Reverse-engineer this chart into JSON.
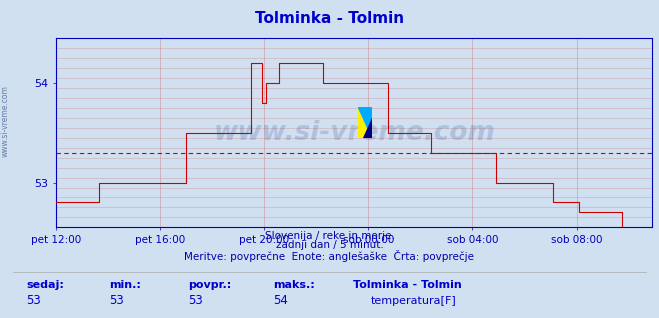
{
  "title": "Tolminka - Tolmin",
  "title_color": "#0000cc",
  "bg_color": "#d0e0f0",
  "plot_bg_color": "#d0e0f0",
  "line_color": "#cc0000",
  "avg_line_color": "#cc0000",
  "avg_line_value": 53.3,
  "x_tick_labels": [
    "pet 12:00",
    "pet 16:00",
    "pet 20:00",
    "sob 00:00",
    "sob 04:00",
    "sob 08:00"
  ],
  "y_ticks": [
    53,
    54
  ],
  "ylim_min": 52.55,
  "ylim_max": 54.45,
  "grid_color": "#cc6666",
  "axis_color": "#0000bb",
  "tick_color": "#0000bb",
  "footer_color": "#0000aa",
  "stats_label_color": "#0000cc",
  "sedaj": 53,
  "min_val": 53,
  "povpr": 53,
  "maks": 54,
  "legend_title": "Tolminka - Tolmin",
  "legend_label": "temperatura[F]",
  "legend_color": "#cc0000",
  "data_y": [
    52.8,
    52.8,
    52.8,
    52.8,
    52.8,
    52.8,
    52.8,
    52.8,
    52.8,
    52.8,
    52.8,
    52.8,
    52.8,
    52.8,
    52.8,
    52.8,
    52.8,
    52.8,
    52.8,
    52.8,
    53.0,
    53.0,
    53.0,
    53.0,
    53.0,
    53.0,
    53.0,
    53.0,
    53.0,
    53.0,
    53.0,
    53.0,
    53.0,
    53.0,
    53.0,
    53.0,
    53.0,
    53.0,
    53.0,
    53.0,
    53.0,
    53.0,
    53.0,
    53.0,
    53.0,
    53.0,
    53.0,
    53.0,
    53.0,
    53.0,
    53.0,
    53.0,
    53.0,
    53.0,
    53.0,
    53.0,
    53.0,
    53.0,
    53.0,
    53.0,
    53.5,
    53.5,
    53.5,
    53.5,
    53.5,
    53.5,
    53.5,
    53.5,
    53.5,
    53.5,
    53.5,
    53.5,
    53.5,
    53.5,
    53.5,
    53.5,
    53.5,
    53.5,
    53.5,
    53.5,
    53.5,
    53.5,
    53.5,
    53.5,
    53.5,
    53.5,
    53.5,
    53.5,
    53.5,
    53.5,
    54.2,
    54.2,
    54.2,
    54.2,
    54.2,
    53.8,
    53.8,
    54.0,
    54.0,
    54.0,
    54.0,
    54.0,
    54.0,
    54.2,
    54.2,
    54.2,
    54.2,
    54.2,
    54.2,
    54.2,
    54.2,
    54.2,
    54.2,
    54.2,
    54.2,
    54.2,
    54.2,
    54.2,
    54.2,
    54.2,
    54.2,
    54.2,
    54.2,
    54.0,
    54.0,
    54.0,
    54.0,
    54.0,
    54.0,
    54.0,
    54.0,
    54.0,
    54.0,
    54.0,
    54.0,
    54.0,
    54.0,
    54.0,
    54.0,
    54.0,
    54.0,
    54.0,
    54.0,
    54.0,
    54.0,
    54.0,
    54.0,
    54.0,
    54.0,
    54.0,
    54.0,
    54.0,
    54.0,
    53.5,
    53.5,
    53.5,
    53.5,
    53.5,
    53.5,
    53.5,
    53.5,
    53.5,
    53.5,
    53.5,
    53.5,
    53.5,
    53.5,
    53.5,
    53.5,
    53.5,
    53.5,
    53.5,
    53.5,
    53.3,
    53.3,
    53.3,
    53.3,
    53.3,
    53.3,
    53.3,
    53.3,
    53.3,
    53.3,
    53.3,
    53.3,
    53.3,
    53.3,
    53.3,
    53.3,
    53.3,
    53.3,
    53.3,
    53.3,
    53.3,
    53.3,
    53.3,
    53.3,
    53.3,
    53.3,
    53.3,
    53.3,
    53.3,
    53.3,
    53.0,
    53.0,
    53.0,
    53.0,
    53.0,
    53.0,
    53.0,
    53.0,
    53.0,
    53.0,
    53.0,
    53.0,
    53.0,
    53.0,
    53.0,
    53.0,
    53.0,
    53.0,
    53.0,
    53.0,
    53.0,
    53.0,
    53.0,
    53.0,
    53.0,
    53.0,
    52.8,
    52.8,
    52.8,
    52.8,
    52.8,
    52.8,
    52.8,
    52.8,
    52.8,
    52.8,
    52.8,
    52.8,
    52.7,
    52.7,
    52.7,
    52.7,
    52.7,
    52.7,
    52.7,
    52.7,
    52.7,
    52.7,
    52.7,
    52.7,
    52.7,
    52.7,
    52.7,
    52.7,
    52.7,
    52.7,
    52.7,
    52.7,
    52.5,
    52.5,
    52.5,
    52.5,
    52.5,
    52.5,
    52.5,
    52.5,
    52.5,
    52.5,
    52.5,
    52.5,
    52.5,
    52.5,
    52.5
  ]
}
